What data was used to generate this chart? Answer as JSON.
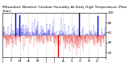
{
  "title": "Milwaukee Weather Outdoor Humidity At Daily High Temperature (Past Year)",
  "num_points": 365,
  "y_min": 10,
  "y_max": 100,
  "x_min": 0,
  "x_max": 365,
  "background_color": "#ffffff",
  "grid_color": "#999999",
  "blue_color": "#0000dd",
  "red_color": "#dd0000",
  "title_fontsize": 3.2,
  "tick_fontsize": 2.8,
  "seed": 42,
  "num_months": 13,
  "baseline": 55,
  "spike_indices": [
    45,
    60,
    195,
    270,
    335
  ],
  "spike_values": [
    98,
    94,
    10,
    99,
    93
  ]
}
